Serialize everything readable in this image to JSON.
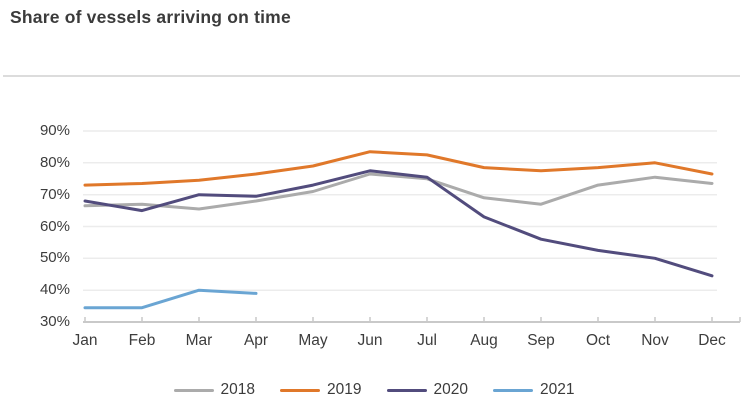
{
  "title": "Share of vessels arriving on time",
  "chart_data": {
    "type": "line",
    "categories": [
      "Jan",
      "Feb",
      "Mar",
      "Apr",
      "May",
      "Jun",
      "Jul",
      "Aug",
      "Sep",
      "Oct",
      "Nov",
      "Dec"
    ],
    "series": [
      {
        "name": "2018",
        "color": "#ababab",
        "values": [
          66.5,
          67,
          65.5,
          68,
          71,
          76.5,
          75,
          69,
          67,
          73,
          75.5,
          73.5
        ]
      },
      {
        "name": "2019",
        "color": "#e0782a",
        "values": [
          73,
          73.5,
          74.5,
          76.5,
          79,
          83.5,
          82.5,
          78.5,
          77.5,
          78.5,
          80,
          76.5
        ]
      },
      {
        "name": "2020",
        "color": "#524c7d",
        "values": [
          68,
          65,
          70,
          69.5,
          73,
          77.5,
          75.5,
          63,
          56,
          52.5,
          50,
          44.5
        ]
      },
      {
        "name": "2021",
        "color": "#6aa5d3",
        "values": [
          34.5,
          34.5,
          40,
          39
        ]
      }
    ],
    "title": "Share of vessels arriving on time",
    "xlabel": "",
    "ylabel": "",
    "ylim": [
      30,
      90
    ],
    "y_ticks": [
      "30%",
      "40%",
      "50%",
      "60%",
      "70%",
      "80%",
      "90%"
    ],
    "ytick_step": 10,
    "grid": "horizontal",
    "legend_position": "bottom"
  },
  "colors": {
    "title_text": "#3b3b3b",
    "axis_text": "#3d3d3d",
    "gridline": "#ececec",
    "axis_line": "#c9c9c9",
    "divider": "#dcdcdc",
    "background": "#ffffff"
  }
}
